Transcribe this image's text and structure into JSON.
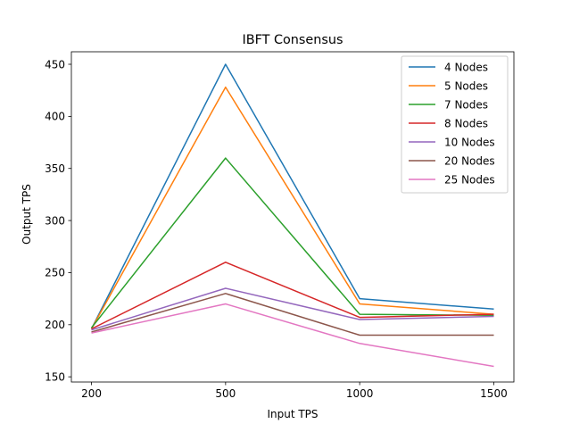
{
  "chart_data": {
    "type": "line",
    "title": "IBFT Consensus",
    "xlabel": "Input TPS",
    "ylabel": "Output TPS",
    "categories": [
      "200",
      "500",
      "1000",
      "1500"
    ],
    "ylim": [
      145,
      462
    ],
    "yticks": [
      150,
      200,
      250,
      300,
      350,
      400,
      450
    ],
    "grid": false,
    "legend_position": "top-right",
    "series": [
      {
        "name": "4 Nodes",
        "color": "#1f77b4",
        "values": [
          196,
          450,
          225,
          215
        ]
      },
      {
        "name": "5 Nodes",
        "color": "#ff7f0e",
        "values": [
          196,
          428,
          220,
          210
        ]
      },
      {
        "name": "7 Nodes",
        "color": "#2ca02c",
        "values": [
          197,
          360,
          210,
          209
        ]
      },
      {
        "name": "8 Nodes",
        "color": "#d62728",
        "values": [
          196,
          260,
          207,
          210
        ]
      },
      {
        "name": "10 Nodes",
        "color": "#9467bd",
        "values": [
          195,
          235,
          205,
          208
        ]
      },
      {
        "name": "20 Nodes",
        "color": "#8c564b",
        "values": [
          193,
          230,
          190,
          190
        ]
      },
      {
        "name": "25 Nodes",
        "color": "#e377c2",
        "values": [
          192,
          220,
          182,
          160
        ]
      }
    ]
  }
}
